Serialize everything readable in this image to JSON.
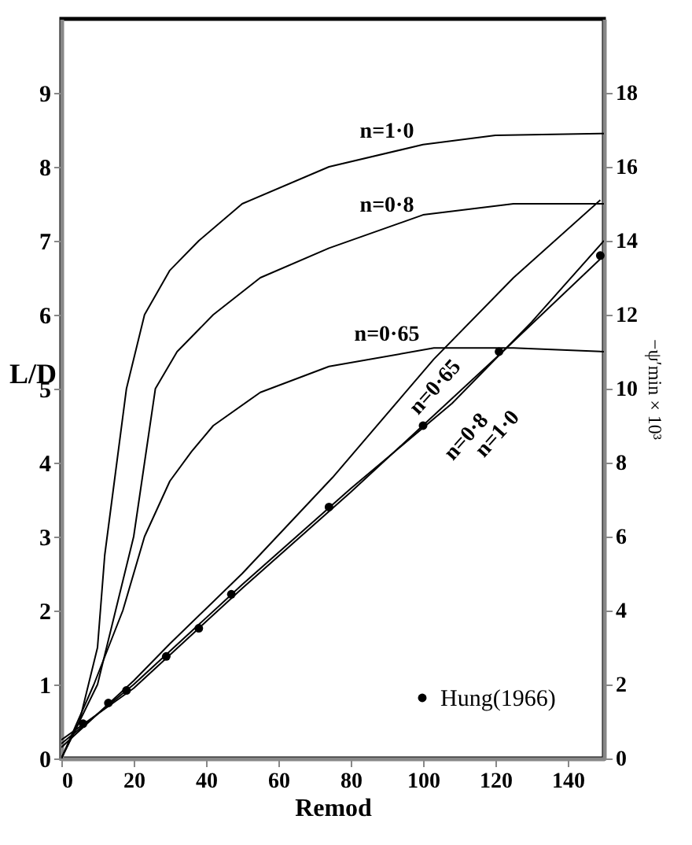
{
  "chart_data": {
    "type": "line",
    "xlabel": "Remod",
    "ylabel": "L/D",
    "y2label": "−ψ′min × 10³",
    "xlim": [
      0,
      150
    ],
    "xticks": [
      0,
      20,
      40,
      60,
      80,
      100,
      120,
      140
    ],
    "ylim": [
      0,
      10
    ],
    "yticks": [
      0,
      1,
      2,
      3,
      4,
      5,
      6,
      7,
      8,
      9
    ],
    "y2lim": [
      0,
      20
    ],
    "y2ticks": [
      0,
      2,
      4,
      6,
      8,
      10,
      12,
      14,
      16,
      18
    ],
    "grid": false,
    "legend": "bottom right",
    "line_style": "solid",
    "series": [
      {
        "name": "n=1·0",
        "axis": "y2",
        "color": "#000000",
        "x": [
          0,
          5,
          10,
          12,
          14,
          18,
          23,
          30,
          38,
          50,
          74,
          100,
          120,
          150
        ],
        "values": [
          0,
          1.0,
          3.0,
          5.5,
          7.0,
          10.0,
          12.0,
          13.2,
          14.0,
          15.0,
          16.0,
          16.6,
          16.85,
          16.9
        ]
      },
      {
        "name": "n=0·8",
        "axis": "y2",
        "color": "#000000",
        "x": [
          0,
          10,
          15,
          20,
          23,
          26,
          32,
          42,
          55,
          74,
          100,
          125,
          150
        ],
        "values": [
          0,
          2.0,
          4.0,
          6.0,
          8.0,
          10.0,
          11.0,
          12.0,
          13.0,
          13.8,
          14.7,
          15.0,
          15.0
        ]
      },
      {
        "name": "n=0·65",
        "axis": "y2",
        "color": "#000000",
        "x": [
          0,
          9,
          17,
          23,
          30,
          36,
          42,
          55,
          74,
          103,
          125,
          150
        ],
        "values": [
          0,
          2.0,
          4.0,
          6.0,
          7.5,
          8.3,
          9.0,
          9.9,
          10.6,
          11.1,
          11.1,
          11.0
        ]
      },
      {
        "name": "n=0·65",
        "color": "#000000",
        "x": [
          0,
          10,
          20,
          30,
          50,
          75,
          103,
          125,
          149
        ],
        "values": [
          0.15,
          0.6,
          1.05,
          1.55,
          2.5,
          3.8,
          5.4,
          6.5,
          7.55
        ]
      },
      {
        "name": "n=0·8",
        "color": "#000000",
        "x": [
          0,
          20,
          50,
          80,
          108,
          130,
          150
        ],
        "values": [
          0.2,
          1.0,
          2.35,
          3.65,
          4.8,
          5.9,
          7.0
        ]
      },
      {
        "name": "n=1·0",
        "color": "#000000",
        "x": [
          0,
          20,
          50,
          80,
          122,
          150
        ],
        "values": [
          0.25,
          0.95,
          2.3,
          3.6,
          5.5,
          6.8
        ]
      },
      {
        "type": "scatter",
        "name": "Hung(1966)",
        "color": "#000000",
        "marker": "circle",
        "x": [
          6,
          13,
          18,
          29,
          38,
          47,
          74,
          100,
          121,
          149
        ],
        "values": [
          0.47,
          0.75,
          0.92,
          1.38,
          1.76,
          2.22,
          3.4,
          4.5,
          5.5,
          6.8
        ]
      }
    ]
  }
}
